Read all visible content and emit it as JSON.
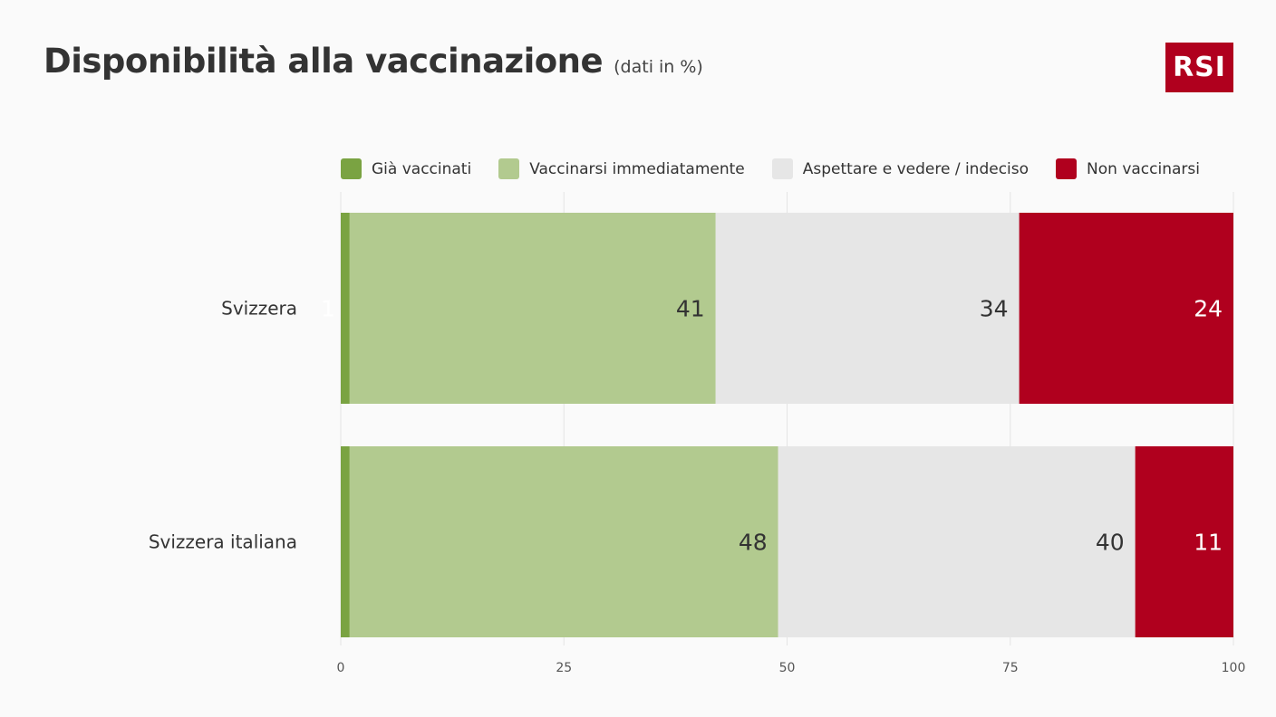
{
  "header": {
    "title": "Disponibilità alla vaccinazione",
    "subtitle": "(dati in %)",
    "logo_text": "RSI",
    "logo_color": "#b0001e"
  },
  "chart_data": {
    "type": "bar",
    "orientation": "horizontal",
    "stacked": true,
    "categories": [
      "Svizzera",
      "Svizzera italiana"
    ],
    "series": [
      {
        "name": "Già vaccinati",
        "color": "#7aa342",
        "values": [
          1,
          1
        ],
        "labels": [
          "1",
          ""
        ],
        "label_color": "#ffffff"
      },
      {
        "name": "Vaccinarsi immediatamente",
        "color": "#b2ca8f",
        "values": [
          41,
          48
        ],
        "labels": [
          "41",
          "48"
        ],
        "label_color": "#333333"
      },
      {
        "name": "Aspettare e vedere / indeciso",
        "color": "#e6e6e6",
        "values": [
          34,
          40
        ],
        "labels": [
          "34",
          "40"
        ],
        "label_color": "#333333"
      },
      {
        "name": "Non vaccinarsi",
        "color": "#b0001e",
        "values": [
          24,
          11
        ],
        "labels": [
          "24",
          "11"
        ],
        "label_color": "#ffffff"
      }
    ],
    "xlim": [
      0,
      100
    ],
    "ticks": [
      0,
      25,
      50,
      75,
      100
    ],
    "grid": true,
    "legend_position": "top"
  }
}
